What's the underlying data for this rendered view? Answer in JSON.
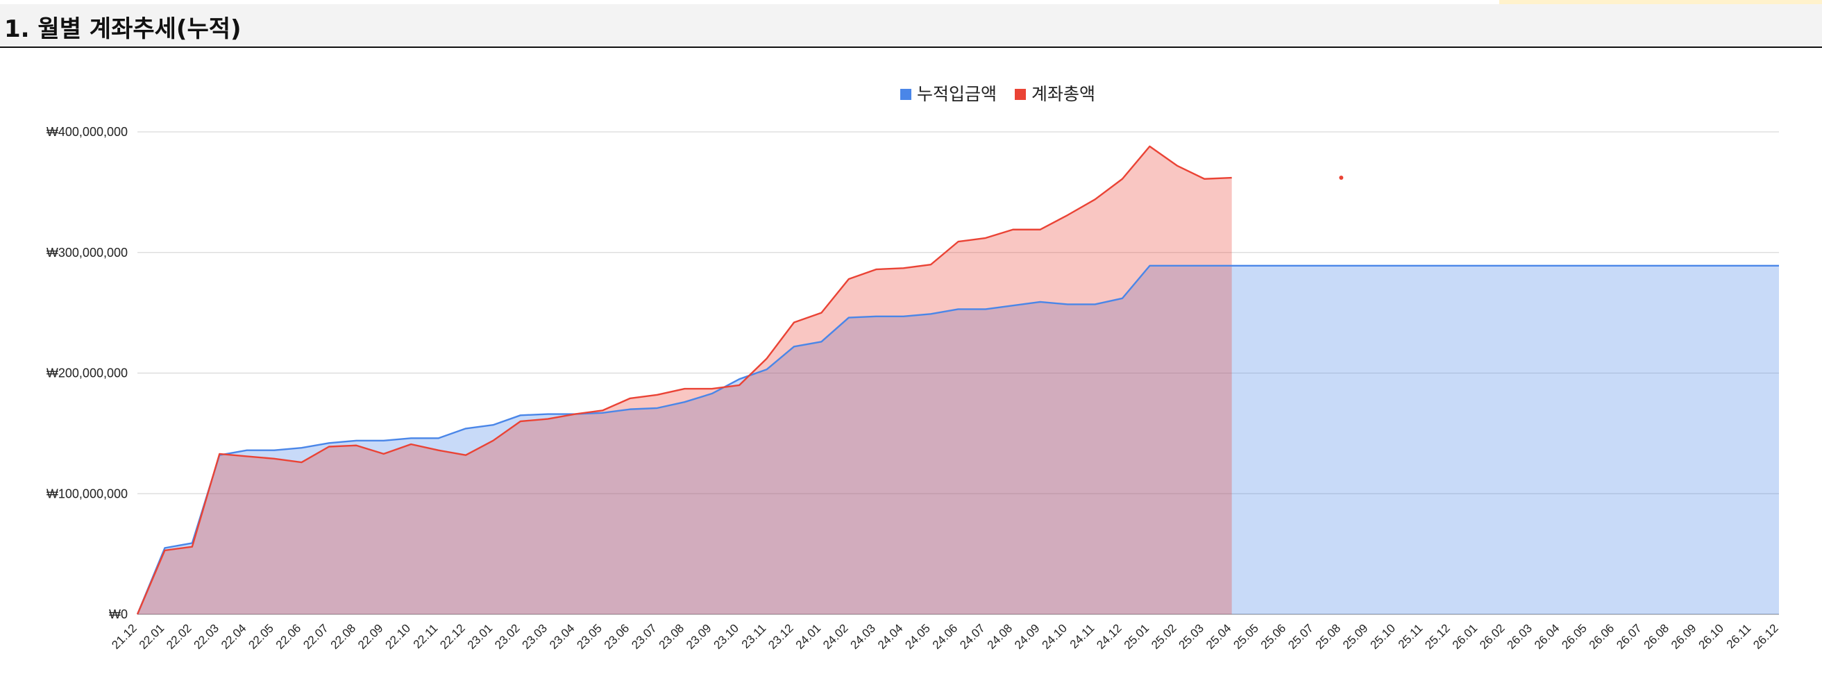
{
  "header": {
    "title": "1. 월별 계좌추세(누적)"
  },
  "chart_data": {
    "type": "area",
    "title": "",
    "xlabel": "",
    "ylabel": "",
    "ylim": [
      0,
      400000000
    ],
    "yticks": [
      0,
      100000000,
      200000000,
      300000000,
      400000000
    ],
    "ytick_labels": [
      "₩0",
      "₩100,000,000",
      "₩200,000,000",
      "₩300,000,000",
      "₩400,000,000"
    ],
    "grid": true,
    "legend": "top-center",
    "categories": [
      "21.12",
      "22.01",
      "22.02",
      "22.03",
      "22.04",
      "22.05",
      "22.06",
      "22.07",
      "22.08",
      "22.09",
      "22.10",
      "22.11",
      "22.12",
      "23.01",
      "23.02",
      "23.03",
      "23.04",
      "23.05",
      "23.06",
      "23.07",
      "23.08",
      "23.09",
      "23.10",
      "23.11",
      "23.12",
      "24.01",
      "24.02",
      "24.03",
      "24.04",
      "24.05",
      "24.06",
      "24.07",
      "24.08",
      "24.09",
      "24.10",
      "24.11",
      "24.12",
      "25.01",
      "25.02",
      "25.03",
      "25.04",
      "25.05",
      "25.06",
      "25.07",
      "25.08",
      "25.09",
      "25.10",
      "25.11",
      "25.12",
      "26.01",
      "26.02",
      "26.03",
      "26.04",
      "26.05",
      "26.06",
      "26.07",
      "26.08",
      "26.09",
      "26.10",
      "26.11",
      "26.12"
    ],
    "series": [
      {
        "name": "누적입금액",
        "color": "#4a86e8",
        "values": [
          0,
          55000000,
          59000000,
          132000000,
          136000000,
          136000000,
          138000000,
          142000000,
          144000000,
          144000000,
          146000000,
          146000000,
          154000000,
          157000000,
          165000000,
          166000000,
          166000000,
          167000000,
          170000000,
          171000000,
          176000000,
          183000000,
          195000000,
          203000000,
          222000000,
          226000000,
          246000000,
          247000000,
          247000000,
          249000000,
          253000000,
          253000000,
          256000000,
          259000000,
          257000000,
          257000000,
          262000000,
          289000000,
          289000000,
          289000000,
          289000000,
          289000000,
          289000000,
          289000000,
          289000000,
          289000000,
          289000000,
          289000000,
          289000000,
          289000000,
          289000000,
          289000000,
          289000000,
          289000000,
          289000000,
          289000000,
          289000000,
          289000000,
          289000000,
          289000000,
          289000000
        ]
      },
      {
        "name": "계좌총액",
        "color": "#ea4335",
        "values": [
          0,
          53000000,
          56000000,
          133000000,
          131000000,
          129000000,
          126000000,
          139000000,
          140000000,
          133000000,
          141000000,
          136000000,
          132000000,
          144000000,
          160000000,
          162000000,
          166000000,
          169000000,
          179000000,
          182000000,
          187000000,
          187000000,
          190000000,
          212000000,
          242000000,
          250000000,
          278000000,
          286000000,
          287000000,
          290000000,
          309000000,
          312000000,
          319000000,
          319000000,
          331000000,
          344000000,
          361000000,
          388000000,
          372000000,
          361000000,
          362000000,
          null,
          null,
          null,
          362000000,
          null,
          null,
          null,
          null,
          null,
          null,
          null,
          null,
          null,
          null,
          null,
          null,
          null,
          null,
          null,
          null
        ]
      }
    ]
  }
}
